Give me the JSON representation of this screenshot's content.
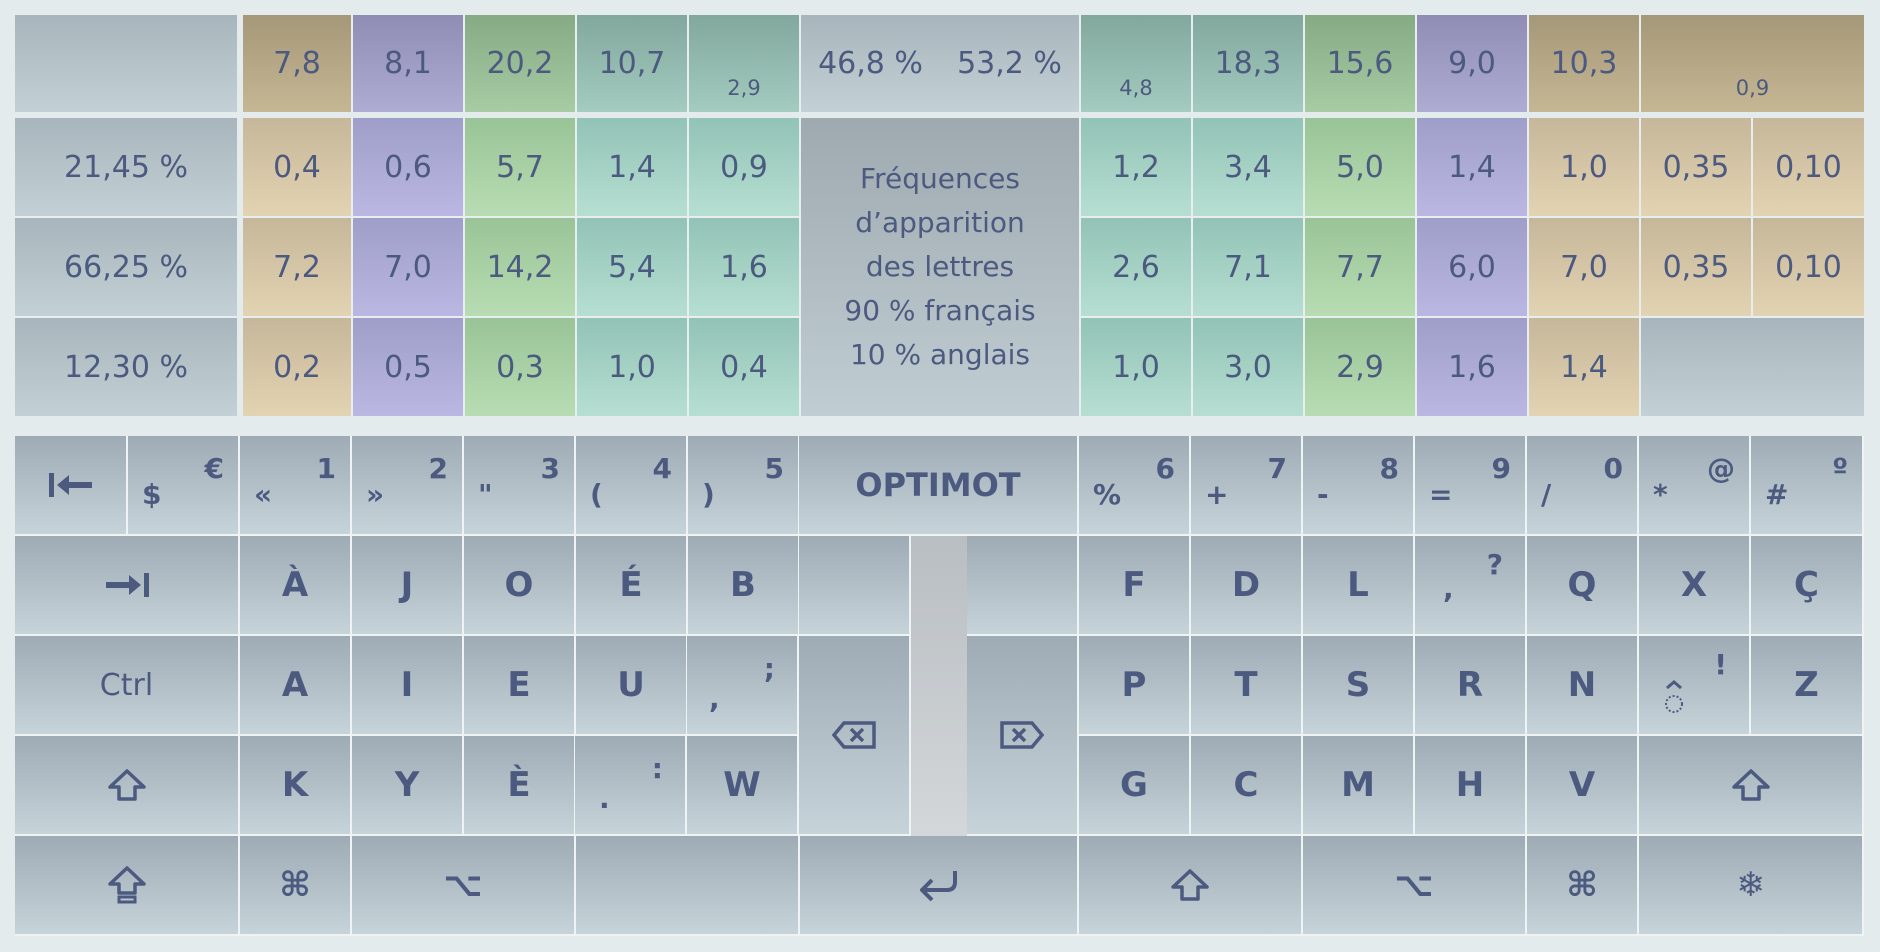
{
  "freq": {
    "top_row": [
      "7,8",
      "8,1",
      "20,2",
      "10,7",
      "2,9",
      "46,8 %",
      "53,2 %",
      "4,8",
      "18,3",
      "15,6",
      "9,0",
      "10,3",
      "0,9"
    ],
    "row_pcts": [
      "21,45 %",
      "66,25 %",
      "12,30 %"
    ],
    "left": [
      [
        "0,4",
        "0,6",
        "5,7",
        "1,4",
        "0,9"
      ],
      [
        "7,2",
        "7,0",
        "14,2",
        "5,4",
        "1,6"
      ],
      [
        "0,2",
        "0,5",
        "0,3",
        "1,0",
        "0,4"
      ]
    ],
    "right": [
      [
        "1,2",
        "3,4",
        "5,0",
        "1,4",
        "1,0",
        "0,35",
        "0,10"
      ],
      [
        "2,6",
        "7,1",
        "7,7",
        "6,0",
        "7,0",
        "0,35",
        "0,10"
      ],
      [
        "1,0",
        "3,0",
        "2,9",
        "1,6",
        "1,4"
      ]
    ],
    "center_lines": [
      "Fréquences",
      "d’apparition",
      "des lettres",
      "90 % français",
      "10 % anglais"
    ]
  },
  "keyboard": {
    "row1": {
      "tab_back": "⇤",
      "dollar": {
        "bottom": "$",
        "top": "€"
      },
      "left_nums": [
        {
          "bottom": "«",
          "top": "1"
        },
        {
          "bottom": "»",
          "top": "2"
        },
        {
          "bottom": "\"",
          "top": "3"
        },
        {
          "bottom": "(",
          "top": "4"
        },
        {
          "bottom": ")",
          "top": "5"
        }
      ],
      "brand": "OPTIMOT",
      "right_nums": [
        {
          "bottom": "%",
          "top": "6"
        },
        {
          "bottom": "+",
          "top": "7"
        },
        {
          "bottom": "-",
          "top": "8"
        },
        {
          "bottom": "=",
          "top": "9"
        },
        {
          "bottom": "/",
          "top": "0"
        },
        {
          "bottom": "*",
          "top": "@"
        },
        {
          "bottom": "#",
          "top": "º"
        }
      ]
    },
    "row2": {
      "tab": "⇥",
      "left": [
        "À",
        "J",
        "O",
        "É",
        "B"
      ],
      "right": [
        "F",
        "D",
        "L"
      ],
      "comma_q": {
        "bottom": ",",
        "top": "?"
      },
      "right2": [
        "Q",
        "X",
        "Ç"
      ]
    },
    "row3": {
      "ctrl": "Ctrl",
      "left": [
        "A",
        "I",
        "E",
        "U"
      ],
      "comma_semi": {
        "bottom": ",",
        "top": ";"
      },
      "right": [
        "P",
        "T",
        "S",
        "R",
        "N"
      ],
      "circ_excl": {
        "bottom": "̂",
        "top": "!"
      },
      "z": "Z"
    },
    "row4": {
      "left": [
        "K",
        "Y",
        "È"
      ],
      "dot_colon": {
        "bottom": ".",
        "top": ":"
      },
      "w": "W",
      "right": [
        "G",
        "C",
        "M",
        "H",
        "V"
      ]
    },
    "row5": {
      "cmd": "⌘",
      "opt": "⌥",
      "enter": "↩",
      "cmd2": "⌘",
      "opt2": "⌥",
      "snow": "❄"
    }
  }
}
